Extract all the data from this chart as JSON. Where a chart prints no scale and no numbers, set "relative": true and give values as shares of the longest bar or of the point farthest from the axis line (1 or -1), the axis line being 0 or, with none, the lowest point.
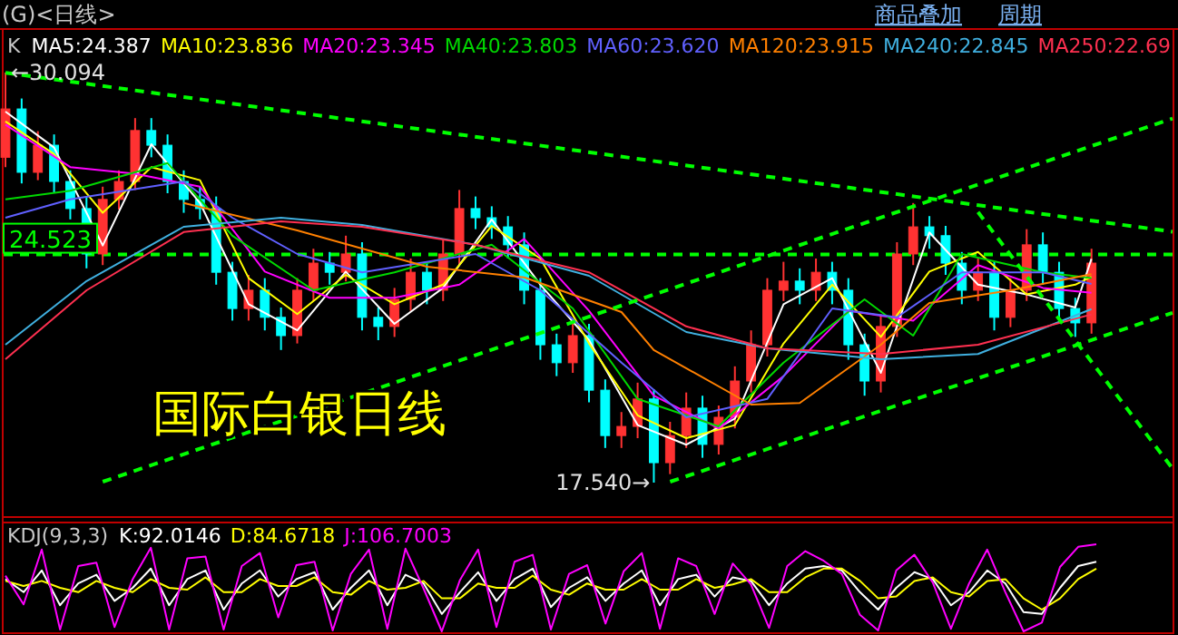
{
  "chart_data": [
    {
      "type": "candlestick",
      "title": "(G)<日线>",
      "legend_title": "K",
      "legend": "top left",
      "categories": [
        null,
        null,
        null,
        null,
        null,
        null,
        null,
        null,
        null,
        null,
        null,
        null,
        null,
        null,
        null,
        null,
        null,
        null,
        null,
        null,
        null,
        null,
        null,
        null,
        null,
        null,
        null,
        null,
        null,
        null,
        null,
        null,
        null,
        null,
        null,
        null,
        null,
        null,
        null,
        null,
        null,
        null,
        null,
        null,
        null,
        null,
        null,
        null,
        null,
        null,
        null,
        null,
        null,
        null,
        null,
        null,
        null,
        null,
        null,
        null,
        null,
        null,
        null,
        null,
        null,
        null,
        null,
        null,
        null,
        null,
        null,
        null,
        null
      ],
      "ohlc": [
        [
          27.5,
          30.094,
          27.2,
          28.98
        ],
        [
          28.98,
          29.3,
          26.7,
          27.04
        ],
        [
          27.04,
          28.3,
          26.8,
          27.87
        ],
        [
          27.87,
          28.2,
          26.4,
          26.76
        ],
        [
          26.76,
          27.1,
          25.6,
          25.93
        ],
        [
          25.93,
          26.3,
          24.1,
          24.54
        ],
        [
          24.54,
          26.6,
          24.2,
          26.21
        ],
        [
          26.21,
          27.1,
          25.9,
          26.76
        ],
        [
          26.76,
          28.7,
          26.5,
          28.32
        ],
        [
          28.32,
          28.7,
          27.5,
          27.87
        ],
        [
          27.87,
          28.2,
          26.4,
          26.76
        ],
        [
          26.76,
          27.1,
          25.8,
          26.21
        ],
        [
          26.21,
          26.6,
          25.6,
          25.93
        ],
        [
          25.93,
          26.3,
          23.6,
          23.98
        ],
        [
          23.98,
          24.3,
          22.5,
          22.87
        ],
        [
          22.87,
          23.9,
          22.5,
          23.43
        ],
        [
          23.43,
          23.8,
          22.2,
          22.6
        ],
        [
          22.6,
          22.9,
          21.6,
          22.04
        ],
        [
          22.04,
          23.8,
          21.8,
          23.43
        ],
        [
          23.43,
          24.7,
          23.1,
          24.26
        ],
        [
          24.26,
          24.6,
          23.6,
          23.98
        ],
        [
          23.98,
          25.1,
          23.7,
          24.54
        ],
        [
          24.54,
          24.9,
          22.2,
          22.6
        ],
        [
          22.6,
          22.9,
          21.9,
          22.32
        ],
        [
          22.32,
          23.5,
          22.0,
          23.15
        ],
        [
          23.15,
          24.4,
          22.8,
          23.98
        ],
        [
          23.98,
          24.3,
          23.0,
          23.43
        ],
        [
          23.43,
          25.0,
          23.1,
          24.54
        ],
        [
          24.54,
          26.5,
          24.2,
          25.93
        ],
        [
          25.93,
          26.3,
          25.3,
          25.65
        ],
        [
          25.65,
          26.0,
          25.0,
          25.37
        ],
        [
          25.37,
          25.7,
          24.4,
          24.82
        ],
        [
          24.82,
          25.2,
          23.0,
          23.43
        ],
        [
          23.43,
          23.8,
          21.3,
          21.76
        ],
        [
          21.76,
          22.1,
          20.8,
          21.21
        ],
        [
          21.21,
          22.5,
          20.9,
          22.04
        ],
        [
          22.04,
          22.4,
          20.0,
          20.37
        ],
        [
          20.37,
          20.7,
          18.6,
          18.98
        ],
        [
          18.98,
          19.7,
          18.6,
          19.26
        ],
        [
          19.26,
          20.6,
          18.9,
          20.1
        ],
        [
          20.1,
          20.4,
          17.54,
          18.15
        ],
        [
          18.15,
          19.4,
          17.8,
          18.98
        ],
        [
          18.98,
          20.3,
          18.6,
          19.82
        ],
        [
          19.82,
          20.2,
          18.3,
          18.71
        ],
        [
          18.71,
          19.9,
          18.4,
          19.54
        ],
        [
          19.54,
          21.1,
          19.2,
          20.65
        ],
        [
          20.65,
          22.2,
          20.3,
          21.76
        ],
        [
          21.76,
          23.8,
          21.4,
          23.43
        ],
        [
          23.43,
          24.3,
          23.1,
          23.71
        ],
        [
          23.71,
          24.1,
          23.0,
          23.43
        ],
        [
          23.43,
          24.4,
          23.1,
          23.98
        ],
        [
          23.98,
          24.3,
          23.0,
          23.43
        ],
        [
          23.43,
          23.8,
          21.3,
          21.76
        ],
        [
          21.76,
          22.1,
          20.2,
          20.65
        ],
        [
          20.65,
          22.7,
          20.3,
          22.32
        ],
        [
          22.32,
          24.9,
          22.0,
          24.54
        ],
        [
          24.54,
          26.1,
          24.2,
          25.37
        ],
        [
          25.37,
          25.7,
          24.7,
          25.1
        ],
        [
          25.1,
          25.4,
          23.9,
          24.26
        ],
        [
          24.26,
          24.6,
          23.0,
          23.43
        ],
        [
          23.43,
          24.4,
          23.1,
          23.98
        ],
        [
          23.98,
          24.3,
          22.2,
          22.6
        ],
        [
          22.6,
          23.8,
          22.3,
          23.43
        ],
        [
          23.43,
          25.3,
          23.1,
          24.82
        ],
        [
          24.82,
          25.2,
          23.6,
          23.98
        ],
        [
          23.98,
          24.3,
          22.5,
          22.87
        ],
        [
          22.87,
          23.2,
          22.0,
          22.43
        ],
        [
          22.43,
          24.7,
          22.1,
          24.26
        ],
        null,
        null,
        null,
        null,
        null
      ],
      "colors": [
        "#ff3232",
        "#00ffff",
        "#ff3232",
        "#00ffff",
        "#00ffff",
        "#00ffff",
        "#ff3232",
        "#ff3232",
        "#ff3232",
        "#00ffff",
        "#00ffff",
        "#00ffff",
        "#00ffff",
        "#00ffff",
        "#00ffff",
        "#ff3232",
        "#00ffff",
        "#00ffff",
        "#ff3232",
        "#ff3232",
        "#00ffff",
        "#ff3232",
        "#00ffff",
        "#00ffff",
        "#ff3232",
        "#ff3232",
        "#00ffff",
        "#ff3232",
        "#ff3232",
        "#00ffff",
        "#00ffff",
        "#00ffff",
        "#00ffff",
        "#00ffff",
        "#00ffff",
        "#ff3232",
        "#00ffff",
        "#00ffff",
        "#ff3232",
        "#ff3232",
        "#00ffff",
        "#ff3232",
        "#ff3232",
        "#00ffff",
        "#ff3232",
        "#ff3232",
        "#ff3232",
        "#ff3232",
        "#ff3232",
        "#00ffff",
        "#ff3232",
        "#00ffff",
        "#00ffff",
        "#00ffff",
        "#ff3232",
        "#ff3232",
        "#ff3232",
        "#00ffff",
        "#00ffff",
        "#00ffff",
        "#ff3232",
        "#00ffff",
        "#ff3232",
        "#ff3232",
        "#00ffff",
        "#00ffff",
        "#00ffff",
        "#ff3232",
        null,
        null,
        null,
        null,
        null
      ],
      "series": [
        {
          "name": "MA5:24.387",
          "type": "line",
          "color": "#ffffff",
          "values": [
            28.9,
            null,
            null,
            27.8,
            null,
            null,
            24.8,
            null,
            null,
            27.9,
            null,
            null,
            26.1,
            null,
            null,
            23.0,
            null,
            null,
            22.2,
            null,
            null,
            24.0,
            null,
            null,
            22.4,
            null,
            null,
            23.5,
            null,
            null,
            25.6,
            null,
            null,
            23.6,
            null,
            null,
            21.9,
            null,
            null,
            19.3,
            null,
            null,
            18.7,
            null,
            null,
            19.5,
            null,
            null,
            23.0,
            null,
            null,
            23.8,
            null,
            null,
            20.9,
            null,
            null,
            25.2,
            null,
            null,
            23.6,
            null,
            null,
            23.3,
            null,
            null,
            22.9,
            24.39,
            null,
            null,
            null,
            null,
            null
          ]
        },
        {
          "name": "MA10:23.836",
          "type": "line",
          "color": "#ffff00",
          "values": [
            28.6,
            null,
            null,
            27.6,
            null,
            null,
            25.8,
            null,
            null,
            27.2,
            null,
            null,
            26.8,
            null,
            null,
            23.8,
            null,
            null,
            22.7,
            null,
            null,
            23.9,
            null,
            null,
            23.0,
            null,
            null,
            23.6,
            null,
            null,
            25.4,
            null,
            null,
            24.4,
            null,
            null,
            21.8,
            null,
            null,
            19.6,
            null,
            null,
            18.9,
            null,
            null,
            19.3,
            null,
            null,
            21.8,
            null,
            null,
            23.6,
            null,
            null,
            22.0,
            null,
            null,
            24.0,
            null,
            null,
            24.6,
            null,
            null,
            23.3,
            null,
            null,
            23.6,
            23.84,
            null,
            null,
            null,
            null,
            null
          ]
        },
        {
          "name": "MA20:23.345",
          "type": "line",
          "color": "#ff00ff",
          "values": [
            28.5,
            null,
            null,
            null,
            27.2,
            null,
            null,
            null,
            27.0,
            null,
            null,
            null,
            26.6,
            null,
            null,
            null,
            24.0,
            null,
            null,
            null,
            23.2,
            null,
            null,
            null,
            23.2,
            null,
            null,
            null,
            23.6,
            null,
            null,
            null,
            25.0,
            null,
            null,
            null,
            22.8,
            null,
            null,
            null,
            20.2,
            null,
            null,
            null,
            19.2,
            null,
            null,
            null,
            20.8,
            null,
            null,
            null,
            22.8,
            null,
            null,
            null,
            22.5,
            null,
            null,
            null,
            24.2,
            null,
            null,
            null,
            23.5,
            null,
            null,
            23.35,
            null,
            null,
            null,
            null,
            null
          ]
        },
        {
          "name": "MA40:23.803",
          "type": "line",
          "color": "#00d800",
          "values": [
            26.21,
            null,
            null,
            null,
            26.48,
            null,
            null,
            null,
            null,
            null,
            27.32,
            null,
            null,
            null,
            25.1,
            null,
            null,
            null,
            null,
            23.43,
            null,
            null,
            null,
            null,
            23.98,
            null,
            null,
            null,
            null,
            null,
            24.82,
            null,
            null,
            null,
            null,
            22.87,
            null,
            null,
            null,
            20.1,
            null,
            null,
            null,
            null,
            19.26,
            null,
            null,
            null,
            21.21,
            null,
            null,
            null,
            null,
            23.15,
            null,
            null,
            22.04,
            null,
            null,
            24.54,
            null,
            null,
            null,
            null,
            23.98,
            null,
            null,
            23.8,
            null,
            null,
            null,
            null,
            null
          ]
        },
        {
          "name": "MA60:23.620",
          "type": "line",
          "color": "#6060ff",
          "values": [
            25.65,
            null,
            null,
            null,
            26.21,
            null,
            null,
            null,
            null,
            null,
            null,
            26.76,
            null,
            null,
            25.65,
            null,
            null,
            null,
            24.54,
            null,
            null,
            null,
            23.98,
            null,
            null,
            null,
            null,
            null,
            null,
            24.54,
            null,
            null,
            null,
            23.43,
            null,
            null,
            null,
            null,
            21.21,
            null,
            null,
            null,
            19.54,
            null,
            null,
            null,
            null,
            20.1,
            null,
            null,
            null,
            22.87,
            null,
            null,
            null,
            22.6,
            null,
            null,
            null,
            23.98,
            null,
            null,
            null,
            null,
            23.98,
            null,
            null,
            23.62,
            null,
            null,
            null,
            null,
            null
          ]
        },
        {
          "name": "MA120:23.915",
          "type": "line",
          "color": "#ff8000",
          "values": [
            null,
            null,
            null,
            null,
            null,
            null,
            null,
            null,
            null,
            null,
            null,
            26.1,
            null,
            null,
            null,
            null,
            null,
            null,
            25.26,
            null,
            null,
            null,
            null,
            null,
            null,
            null,
            24.15,
            null,
            null,
            null,
            null,
            null,
            23.82,
            null,
            null,
            null,
            null,
            null,
            22.76,
            null,
            21.6,
            null,
            null,
            null,
            null,
            null,
            19.93,
            null,
            null,
            19.98,
            null,
            null,
            null,
            null,
            21.76,
            null,
            null,
            23.04,
            null,
            null,
            null,
            null,
            23.43,
            null,
            null,
            null,
            null,
            23.92,
            null,
            null,
            null,
            null,
            null
          ]
        },
        {
          "name": "MA240:22.845",
          "type": "line",
          "color": "#40b0e0",
          "values": [
            21.76,
            null,
            null,
            null,
            null,
            23.71,
            null,
            null,
            null,
            null,
            null,
            25.37,
            null,
            null,
            null,
            null,
            null,
            25.65,
            null,
            null,
            null,
            null,
            25.43,
            null,
            null,
            null,
            null,
            null,
            null,
            24.82,
            null,
            null,
            null,
            null,
            null,
            null,
            23.87,
            null,
            null,
            null,
            null,
            null,
            22.15,
            null,
            null,
            null,
            null,
            21.65,
            null,
            null,
            null,
            null,
            null,
            null,
            21.32,
            null,
            null,
            null,
            null,
            null,
            21.48,
            null,
            null,
            null,
            null,
            null,
            null,
            22.85,
            null,
            null,
            null,
            null,
            null
          ]
        },
        {
          "name": "MA250:22.69",
          "type": "line",
          "color": "#ff3050",
          "values": [
            21.32,
            null,
            null,
            null,
            null,
            23.43,
            null,
            null,
            null,
            null,
            null,
            25.21,
            null,
            null,
            null,
            null,
            null,
            25.54,
            null,
            null,
            null,
            null,
            25.37,
            null,
            null,
            null,
            null,
            null,
            null,
            24.82,
            null,
            null,
            null,
            null,
            null,
            null,
            23.98,
            null,
            null,
            null,
            null,
            null,
            22.32,
            null,
            null,
            null,
            null,
            21.65,
            null,
            null,
            null,
            null,
            null,
            null,
            21.48,
            null,
            null,
            null,
            null,
            null,
            21.76,
            null,
            null,
            null,
            null,
            null,
            null,
            22.69,
            null,
            null,
            null,
            null,
            null
          ]
        },
        {
          "type": "line",
          "color": "#00ff00",
          "line_style": "dashed",
          "values": [
            30.09,
            null,
            null,
            null,
            null,
            null,
            null,
            null,
            null,
            null,
            null,
            null,
            null,
            null,
            null,
            null,
            null,
            null,
            null,
            null,
            null,
            null,
            null,
            null,
            null,
            null,
            null,
            null,
            null,
            null,
            null,
            null,
            null,
            null,
            null,
            null,
            null,
            null,
            null,
            null,
            null,
            null,
            null,
            null,
            null,
            null,
            null,
            null,
            null,
            null,
            null,
            null,
            null,
            null,
            null,
            null,
            null,
            null,
            null,
            null,
            null,
            null,
            null,
            null,
            null,
            null,
            null,
            null,
            null,
            null,
            null,
            null,
            25.22
          ]
        },
        {
          "type": "line",
          "color": "#00ff00",
          "line_style": "dashed",
          "values": [
            null,
            null,
            null,
            null,
            null,
            null,
            17.57,
            null,
            null,
            null,
            null,
            null,
            null,
            null,
            null,
            null,
            null,
            null,
            null,
            null,
            null,
            null,
            null,
            null,
            null,
            null,
            null,
            null,
            null,
            null,
            null,
            null,
            null,
            null,
            null,
            null,
            null,
            null,
            null,
            null,
            null,
            null,
            null,
            null,
            null,
            null,
            null,
            null,
            null,
            null,
            null,
            null,
            null,
            null,
            null,
            null,
            null,
            null,
            null,
            null,
            null,
            null,
            null,
            null,
            null,
            null,
            null,
            null,
            null,
            null,
            null,
            null,
            28.69
          ]
        },
        {
          "type": "line",
          "color": "#00ff00",
          "line_style": "dashed",
          "values": [
            null,
            null,
            null,
            null,
            null,
            null,
            null,
            null,
            null,
            null,
            null,
            null,
            null,
            null,
            null,
            null,
            null,
            null,
            null,
            null,
            null,
            null,
            null,
            null,
            null,
            null,
            null,
            null,
            null,
            null,
            null,
            null,
            null,
            null,
            null,
            null,
            null,
            null,
            null,
            null,
            null,
            17.57,
            null,
            null,
            null,
            null,
            null,
            null,
            null,
            null,
            null,
            null,
            null,
            null,
            null,
            null,
            null,
            null,
            null,
            null,
            null,
            null,
            null,
            null,
            null,
            null,
            null,
            null,
            null,
            null,
            null,
            null,
            22.74
          ]
        },
        {
          "type": "line",
          "color": "#00ff00",
          "line_style": "dashed",
          "values": [
            null,
            null,
            null,
            null,
            null,
            null,
            null,
            null,
            null,
            null,
            null,
            null,
            null,
            null,
            null,
            null,
            null,
            null,
            null,
            null,
            null,
            null,
            null,
            null,
            null,
            null,
            null,
            null,
            null,
            null,
            null,
            null,
            null,
            null,
            null,
            null,
            null,
            null,
            null,
            null,
            null,
            null,
            null,
            null,
            null,
            null,
            null,
            null,
            null,
            null,
            null,
            null,
            null,
            null,
            null,
            null,
            null,
            null,
            null,
            null,
            25.82,
            null,
            null,
            null,
            null,
            null,
            null,
            null,
            null,
            null,
            null,
            null,
            17.97
          ]
        }
      ],
      "ref_lines": [
        {
          "axis": "y",
          "value": 24.523,
          "label": "24.523",
          "color": "#00ff00",
          "line_style": "dashed"
        }
      ],
      "annotations": [
        "←30.094",
        "17.540→",
        "国际白银日线",
        "商品叠加",
        "周期"
      ]
    },
    {
      "type": "line",
      "relative": true,
      "legend_title": "KDJ(9,3,3)",
      "legend": "top left",
      "categories": [
        null,
        null,
        null,
        null,
        null,
        null,
        null,
        null,
        null,
        null,
        null,
        null,
        null,
        null,
        null,
        null,
        null,
        null,
        null,
        null,
        null,
        null,
        null,
        null,
        null,
        null,
        null,
        null,
        null,
        null,
        null,
        null,
        null,
        null,
        null,
        null,
        null,
        null,
        null,
        null,
        null,
        null,
        null,
        null,
        null,
        null,
        null,
        null,
        null,
        null,
        null,
        null,
        null,
        null,
        null,
        null,
        null,
        null,
        null,
        null,
        null
      ],
      "series": [
        {
          "name": "K:92.0146",
          "color": "#ffffff",
          "values": [
            0.6,
            0.45,
            0.7,
            0.3,
            0.55,
            0.65,
            0.35,
            0.5,
            0.72,
            0.3,
            0.6,
            0.7,
            0.25,
            0.55,
            0.7,
            0.4,
            0.6,
            0.68,
            0.25,
            0.5,
            0.7,
            0.3,
            0.65,
            0.55,
            0.2,
            0.45,
            0.68,
            0.35,
            0.6,
            0.72,
            0.28,
            0.5,
            0.62,
            0.35,
            0.55,
            0.7,
            0.3,
            0.6,
            0.65,
            0.4,
            0.62,
            0.58,
            0.3,
            0.55,
            0.72,
            0.75,
            0.7,
            0.45,
            0.25,
            0.5,
            0.68,
            0.6,
            0.3,
            0.45,
            0.7,
            0.55,
            0.22,
            0.2,
            0.5,
            0.75,
            0.8
          ]
        },
        {
          "name": "D:84.6718",
          "color": "#ffff00",
          "values": [
            0.58,
            0.52,
            0.58,
            0.5,
            0.45,
            0.58,
            0.5,
            0.45,
            0.6,
            0.5,
            0.48,
            0.62,
            0.45,
            0.45,
            0.6,
            0.52,
            0.52,
            0.62,
            0.45,
            0.42,
            0.58,
            0.48,
            0.5,
            0.58,
            0.38,
            0.38,
            0.55,
            0.5,
            0.5,
            0.64,
            0.48,
            0.42,
            0.55,
            0.48,
            0.48,
            0.6,
            0.48,
            0.48,
            0.6,
            0.5,
            0.54,
            0.6,
            0.45,
            0.45,
            0.62,
            0.72,
            0.72,
            0.58,
            0.38,
            0.4,
            0.58,
            0.62,
            0.45,
            0.4,
            0.58,
            0.6,
            0.38,
            0.25,
            0.38,
            0.6,
            0.72
          ]
        },
        {
          "name": "J:106.7003",
          "color": "#ff00ff",
          "values": [
            0.64,
            0.31,
            0.94,
            0.02,
            0.75,
            0.79,
            0.05,
            0.6,
            0.96,
            0.02,
            0.84,
            0.86,
            0.02,
            0.75,
            0.9,
            0.16,
            0.76,
            0.8,
            0.01,
            0.66,
            0.94,
            0.03,
            0.95,
            0.49,
            0,
            0.59,
            0.94,
            0.05,
            0.8,
            0.88,
            0.02,
            0.66,
            0.76,
            0.09,
            0.69,
            0.9,
            0.03,
            0.84,
            0.75,
            0.2,
            0.78,
            0.54,
            0.04,
            0.75,
            0.92,
            0.81,
            0.66,
            0.19,
            0.01,
            0.7,
            0.88,
            0.56,
            0.03,
            0.55,
            0.94,
            0.45,
            0,
            0.1,
            0.74,
            0.97,
            1
          ]
        }
      ]
    }
  ]
}
